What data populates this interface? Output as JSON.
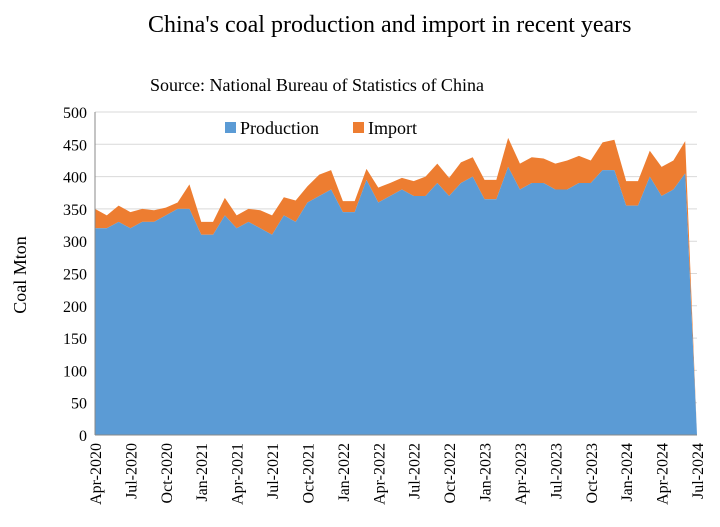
{
  "chart_data": {
    "type": "area",
    "stacked": true,
    "title": "China's coal production and import in recent years",
    "subtitle": "Source: National Bureau of Statistics of China",
    "xlabel": "",
    "ylabel": "Coal  Mton",
    "ylim": [
      0,
      500
    ],
    "yticks": [
      0,
      50,
      100,
      150,
      200,
      250,
      300,
      350,
      400,
      450,
      500
    ],
    "grid": true,
    "legend": "top-center",
    "x": [
      "Apr-2020",
      "May-2020",
      "Jun-2020",
      "Jul-2020",
      "Aug-2020",
      "Sep-2020",
      "Oct-2020",
      "Nov-2020",
      "Dec-2020",
      "Jan-2021",
      "Feb-2021",
      "Mar-2021",
      "Apr-2021",
      "May-2021",
      "Jun-2021",
      "Jul-2021",
      "Aug-2021",
      "Sep-2021",
      "Oct-2021",
      "Nov-2021",
      "Dec-2021",
      "Jan-2022",
      "Feb-2022",
      "Mar-2022",
      "Apr-2022",
      "May-2022",
      "Jun-2022",
      "Jul-2022",
      "Aug-2022",
      "Sep-2022",
      "Oct-2022",
      "Nov-2022",
      "Dec-2022",
      "Jan-2023",
      "Feb-2023",
      "Mar-2023",
      "Apr-2023",
      "May-2023",
      "Jun-2023",
      "Jul-2023",
      "Aug-2023",
      "Sep-2023",
      "Oct-2023",
      "Nov-2023",
      "Dec-2023",
      "Jan-2024",
      "Feb-2024",
      "Mar-2024",
      "Apr-2024",
      "May-2024",
      "Jun-2024",
      "Jul-2024"
    ],
    "xtick_labels": [
      "Apr-2020",
      "Jul-2020",
      "Oct-2020",
      "Jan-2021",
      "Apr-2021",
      "Jul-2021",
      "Oct-2021",
      "Jan-2022",
      "Apr-2022",
      "Jul-2022",
      "Oct-2022",
      "Jan-2023",
      "Apr-2023",
      "Jul-2023",
      "Oct-2023",
      "Jan-2024",
      "Apr-2024",
      "Jul-2024"
    ],
    "series": [
      {
        "name": "Production",
        "color": "#5b9bd5",
        "values": [
          320,
          320,
          330,
          320,
          330,
          330,
          340,
          350,
          350,
          310,
          310,
          340,
          320,
          330,
          320,
          310,
          340,
          330,
          360,
          370,
          380,
          345,
          345,
          395,
          360,
          370,
          380,
          370,
          370,
          390,
          370,
          390,
          400,
          365,
          365,
          415,
          380,
          390,
          390,
          380,
          380,
          390,
          390,
          410,
          410,
          355,
          355,
          400,
          370,
          380,
          405,
          0
        ]
      },
      {
        "name": "Import",
        "color": "#ed7d31",
        "values": [
          30,
          20,
          25,
          25,
          20,
          18,
          12,
          10,
          38,
          20,
          20,
          27,
          20,
          20,
          28,
          30,
          28,
          33,
          25,
          33,
          30,
          17,
          17,
          17,
          23,
          20,
          18,
          23,
          30,
          30,
          28,
          32,
          30,
          30,
          30,
          45,
          40,
          40,
          38,
          40,
          45,
          42,
          35,
          43,
          47,
          38,
          38,
          40,
          45,
          45,
          50,
          0
        ]
      }
    ]
  }
}
